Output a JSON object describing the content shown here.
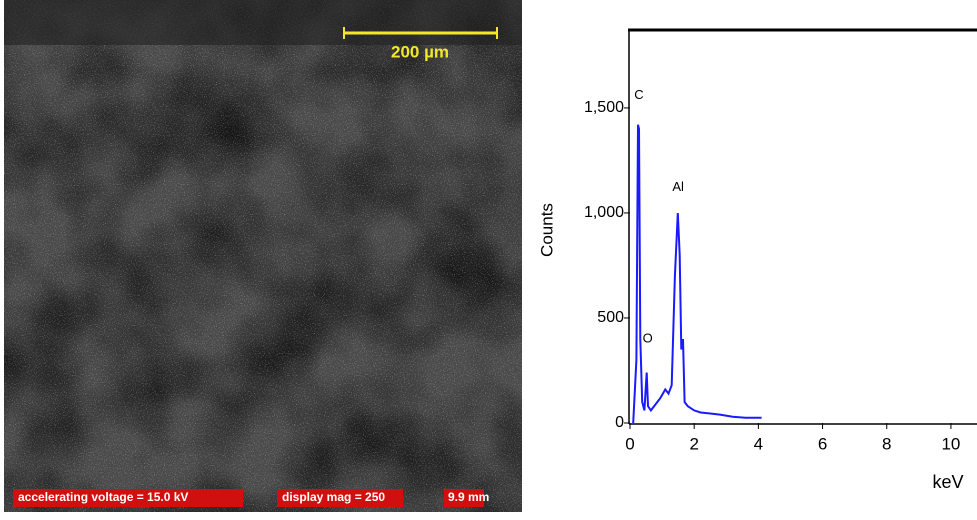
{
  "image": {
    "scale_label": "200 µm",
    "labels": [
      "accelerating voltage = 15.0 kV",
      "display mag = 250",
      "9.9 mm"
    ]
  },
  "chart_data": {
    "type": "line",
    "x": [
      0.1,
      0.2,
      0.25,
      0.28,
      0.32,
      0.38,
      0.45,
      0.52,
      0.56,
      0.65,
      0.8,
      0.95,
      1.1,
      1.2,
      1.3,
      1.4,
      1.49,
      1.55,
      1.6,
      1.65,
      1.7,
      1.8,
      2.0,
      2.2,
      2.5,
      2.8,
      3.2,
      3.6,
      4.1
    ],
    "series": [
      {
        "color": "#1a1aff",
        "values": [
          0,
          300,
          1420,
          1400,
          400,
          100,
          60,
          240,
          80,
          60,
          90,
          120,
          160,
          140,
          180,
          700,
          1000,
          800,
          350,
          400,
          100,
          80,
          60,
          50,
          45,
          40,
          30,
          25,
          25
        ]
      }
    ],
    "annotations": [
      "C",
      "O",
      "Al"
    ],
    "xlabel": "keV",
    "ylabel": "Counts",
    "xlim": [
      0,
      10.75
    ],
    "ylim": [
      0,
      1871
    ],
    "xticks": [
      0,
      2,
      4,
      6,
      8,
      10
    ],
    "yticks": [
      0,
      500,
      {
        "value": 1000,
        "label": "1,000"
      },
      {
        "value": 1500,
        "label": "1,500"
      }
    ]
  }
}
